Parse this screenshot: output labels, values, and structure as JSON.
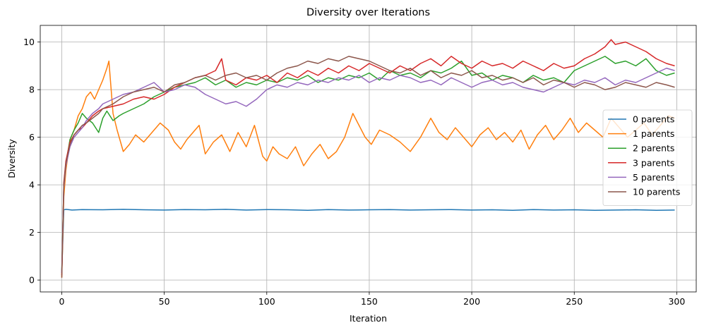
{
  "chart_data": {
    "type": "line",
    "title": "Diversity over Iterations",
    "xlabel": "Iteration",
    "ylabel": "Diversity",
    "xlim": [
      -10.5,
      309.5
    ],
    "ylim": [
      -0.5,
      10.7
    ],
    "xticks": [
      0,
      50,
      100,
      150,
      200,
      250,
      300
    ],
    "yticks": [
      0,
      2,
      4,
      6,
      8,
      10
    ],
    "grid": true,
    "legend_position": "center-right",
    "series": [
      {
        "name": "0 parents",
        "color": "#1f77b4",
        "x": [
          0,
          1,
          2,
          5,
          10,
          20,
          30,
          40,
          50,
          60,
          70,
          80,
          90,
          100,
          110,
          120,
          130,
          140,
          150,
          160,
          170,
          180,
          190,
          200,
          210,
          220,
          230,
          240,
          250,
          260,
          270,
          280,
          290,
          299
        ],
        "y": [
          0.3,
          2.95,
          2.97,
          2.94,
          2.96,
          2.95,
          2.97,
          2.95,
          2.94,
          2.96,
          2.95,
          2.97,
          2.94,
          2.96,
          2.95,
          2.93,
          2.96,
          2.94,
          2.95,
          2.96,
          2.94,
          2.95,
          2.96,
          2.94,
          2.95,
          2.93,
          2.96,
          2.94,
          2.95,
          2.93,
          2.94,
          2.95,
          2.93,
          2.94
        ]
      },
      {
        "name": "1 parents",
        "color": "#ff7f0e",
        "x": [
          0,
          1,
          2,
          4,
          6,
          8,
          10,
          12,
          14,
          16,
          18,
          20,
          22,
          23,
          25,
          27,
          30,
          33,
          36,
          40,
          44,
          48,
          52,
          55,
          58,
          61,
          64,
          67,
          70,
          74,
          78,
          82,
          86,
          90,
          94,
          98,
          100,
          103,
          106,
          110,
          114,
          118,
          122,
          126,
          130,
          134,
          138,
          142,
          145,
          148,
          151,
          155,
          160,
          165,
          170,
          175,
          180,
          184,
          188,
          192,
          196,
          200,
          204,
          208,
          212,
          216,
          220,
          224,
          228,
          232,
          236,
          240,
          244,
          248,
          252,
          256,
          260,
          264,
          268,
          272,
          276,
          280,
          284,
          288,
          292,
          296,
          299
        ],
        "y": [
          0.1,
          3.5,
          4.6,
          5.9,
          6.3,
          6.9,
          7.2,
          7.7,
          7.9,
          7.6,
          8.0,
          8.4,
          8.9,
          9.2,
          7.0,
          6.3,
          5.4,
          5.7,
          6.1,
          5.8,
          6.2,
          6.6,
          6.3,
          5.8,
          5.5,
          5.9,
          6.2,
          6.5,
          5.3,
          5.8,
          6.1,
          5.4,
          6.2,
          5.6,
          6.5,
          5.2,
          5.0,
          5.6,
          5.3,
          5.1,
          5.6,
          4.8,
          5.3,
          5.7,
          5.1,
          5.4,
          6.0,
          7.0,
          6.5,
          6.0,
          5.7,
          6.3,
          6.1,
          5.8,
          5.4,
          6.0,
          6.8,
          6.2,
          5.9,
          6.4,
          6.0,
          5.6,
          6.1,
          6.4,
          5.9,
          6.2,
          5.8,
          6.3,
          5.5,
          6.1,
          6.5,
          5.9,
          6.3,
          6.8,
          6.2,
          6.6,
          6.3,
          6.0,
          6.8,
          6.4,
          6.0,
          6.3,
          6.6,
          6.1,
          6.5,
          6.9,
          6.8
        ]
      },
      {
        "name": "2 parents",
        "color": "#2ca02c",
        "x": [
          0,
          1,
          2,
          4,
          6,
          8,
          10,
          12,
          15,
          18,
          20,
          22,
          25,
          28,
          30,
          35,
          40,
          45,
          50,
          55,
          60,
          65,
          70,
          75,
          80,
          85,
          90,
          95,
          100,
          105,
          110,
          115,
          120,
          125,
          130,
          135,
          140,
          145,
          150,
          155,
          160,
          165,
          170,
          175,
          180,
          185,
          190,
          195,
          200,
          205,
          210,
          215,
          220,
          225,
          230,
          235,
          240,
          245,
          250,
          255,
          260,
          265,
          270,
          275,
          280,
          285,
          290,
          295,
          299
        ],
        "y": [
          0.4,
          4.0,
          4.9,
          5.9,
          6.3,
          6.6,
          7.0,
          6.8,
          6.6,
          6.2,
          6.8,
          7.1,
          6.7,
          6.9,
          7.0,
          7.2,
          7.4,
          7.7,
          7.9,
          8.1,
          8.2,
          8.3,
          8.5,
          8.2,
          8.4,
          8.1,
          8.3,
          8.2,
          8.4,
          8.3,
          8.5,
          8.4,
          8.6,
          8.3,
          8.5,
          8.4,
          8.6,
          8.5,
          8.7,
          8.4,
          8.8,
          8.6,
          8.7,
          8.5,
          8.8,
          8.7,
          8.9,
          9.2,
          8.6,
          8.7,
          8.4,
          8.6,
          8.5,
          8.3,
          8.6,
          8.4,
          8.5,
          8.3,
          8.8,
          9.0,
          9.2,
          9.4,
          9.1,
          9.2,
          9.0,
          9.3,
          8.8,
          8.6,
          8.7
        ]
      },
      {
        "name": "3 parents",
        "color": "#d62728",
        "x": [
          0,
          1,
          2,
          4,
          6,
          8,
          10,
          12,
          15,
          18,
          20,
          25,
          30,
          35,
          40,
          45,
          50,
          55,
          60,
          65,
          70,
          75,
          78,
          80,
          85,
          90,
          95,
          100,
          105,
          110,
          115,
          120,
          125,
          130,
          135,
          140,
          145,
          150,
          155,
          160,
          165,
          170,
          175,
          180,
          185,
          190,
          195,
          200,
          205,
          210,
          215,
          220,
          225,
          230,
          235,
          240,
          245,
          250,
          255,
          260,
          265,
          268,
          270,
          275,
          280,
          285,
          290,
          295,
          299
        ],
        "y": [
          0.2,
          4.1,
          5.0,
          5.8,
          6.1,
          6.3,
          6.4,
          6.6,
          6.9,
          7.1,
          7.2,
          7.3,
          7.4,
          7.6,
          7.7,
          7.6,
          7.8,
          8.1,
          8.3,
          8.5,
          8.6,
          8.8,
          9.3,
          8.4,
          8.2,
          8.5,
          8.4,
          8.6,
          8.3,
          8.7,
          8.5,
          8.8,
          8.6,
          8.9,
          8.7,
          9.0,
          8.8,
          9.1,
          8.9,
          8.7,
          9.0,
          8.8,
          9.1,
          9.3,
          9.0,
          9.4,
          9.1,
          8.9,
          9.2,
          9.0,
          9.1,
          8.9,
          9.2,
          9.0,
          8.8,
          9.1,
          8.9,
          9.0,
          9.3,
          9.5,
          9.8,
          10.1,
          9.9,
          10.0,
          9.8,
          9.6,
          9.3,
          9.1,
          9.0
        ]
      },
      {
        "name": "5 parents",
        "color": "#9467bd",
        "x": [
          0,
          1,
          2,
          4,
          6,
          8,
          10,
          12,
          15,
          18,
          20,
          25,
          30,
          35,
          40,
          45,
          50,
          55,
          60,
          65,
          70,
          75,
          80,
          85,
          90,
          95,
          100,
          105,
          110,
          115,
          120,
          125,
          130,
          135,
          140,
          145,
          150,
          155,
          160,
          165,
          170,
          175,
          180,
          185,
          190,
          195,
          200,
          205,
          210,
          215,
          220,
          225,
          230,
          235,
          240,
          245,
          250,
          255,
          260,
          265,
          270,
          275,
          280,
          285,
          290,
          295,
          299
        ],
        "y": [
          0.3,
          3.9,
          4.8,
          5.6,
          6.0,
          6.2,
          6.4,
          6.7,
          7.0,
          7.2,
          7.4,
          7.6,
          7.8,
          7.9,
          8.1,
          8.3,
          7.9,
          8.0,
          8.2,
          8.1,
          7.8,
          7.6,
          7.4,
          7.5,
          7.3,
          7.6,
          8.0,
          8.2,
          8.1,
          8.3,
          8.2,
          8.4,
          8.3,
          8.5,
          8.4,
          8.6,
          8.3,
          8.5,
          8.4,
          8.6,
          8.5,
          8.3,
          8.4,
          8.2,
          8.5,
          8.3,
          8.1,
          8.3,
          8.4,
          8.2,
          8.3,
          8.1,
          8.0,
          7.9,
          8.1,
          8.3,
          8.2,
          8.4,
          8.3,
          8.5,
          8.2,
          8.4,
          8.3,
          8.5,
          8.7,
          8.9,
          8.8
        ]
      },
      {
        "name": "10 parents",
        "color": "#8c564b",
        "x": [
          0,
          1,
          2,
          4,
          6,
          8,
          10,
          12,
          15,
          18,
          20,
          25,
          30,
          35,
          40,
          45,
          50,
          55,
          60,
          65,
          70,
          75,
          80,
          85,
          90,
          95,
          100,
          105,
          110,
          115,
          120,
          125,
          130,
          135,
          140,
          145,
          150,
          155,
          160,
          165,
          170,
          175,
          180,
          185,
          190,
          195,
          200,
          205,
          210,
          215,
          220,
          225,
          230,
          235,
          240,
          245,
          250,
          255,
          260,
          265,
          270,
          275,
          280,
          285,
          290,
          295,
          299
        ],
        "y": [
          0.1,
          4.0,
          4.9,
          5.7,
          6.1,
          6.3,
          6.5,
          6.6,
          6.8,
          7.0,
          7.2,
          7.4,
          7.7,
          7.9,
          8.0,
          8.1,
          7.9,
          8.2,
          8.3,
          8.5,
          8.6,
          8.4,
          8.6,
          8.7,
          8.5,
          8.6,
          8.4,
          8.7,
          8.9,
          9.0,
          9.2,
          9.1,
          9.3,
          9.2,
          9.4,
          9.3,
          9.2,
          9.0,
          8.8,
          8.7,
          8.9,
          8.6,
          8.8,
          8.5,
          8.7,
          8.6,
          8.8,
          8.5,
          8.6,
          8.4,
          8.5,
          8.3,
          8.5,
          8.2,
          8.4,
          8.3,
          8.1,
          8.3,
          8.2,
          8.0,
          8.1,
          8.3,
          8.2,
          8.1,
          8.3,
          8.2,
          8.1
        ]
      }
    ]
  }
}
